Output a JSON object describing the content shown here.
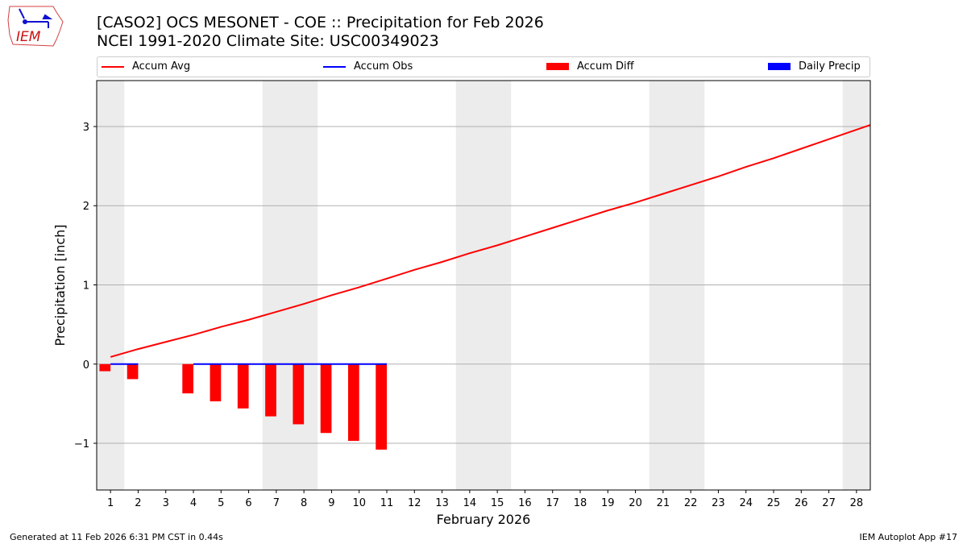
{
  "header": {
    "title": "[CASO2] OCS MESONET - COE :: Precipitation for Feb 2026",
    "subtitle": "NCEI 1991-2020 Climate Site: USC00349023",
    "logo_text": "IEM"
  },
  "footer": {
    "generated": "Generated at 11 Feb 2026 6:31 PM CST in 0.44s",
    "app": "IEM Autoplot App #17"
  },
  "chart_data": {
    "type": "bar+line",
    "xlabel": "February 2026",
    "ylabel": "Precipitation [inch]",
    "xlim": [
      0.5,
      28.5
    ],
    "ylim": [
      -1.59,
      3.58
    ],
    "yticks": [
      -1,
      0,
      1,
      2,
      3
    ],
    "ytick_labels": [
      "−1",
      "0",
      "1",
      "2",
      "3"
    ],
    "xticks": [
      1,
      2,
      3,
      4,
      5,
      6,
      7,
      8,
      9,
      10,
      11,
      12,
      13,
      14,
      15,
      16,
      17,
      18,
      19,
      20,
      21,
      22,
      23,
      24,
      25,
      26,
      27,
      28
    ],
    "grid": "horizontal",
    "legend_position": "top",
    "weekend_shading": [
      [
        0.5,
        1.5
      ],
      [
        6.5,
        8.5
      ],
      [
        13.5,
        15.5
      ],
      [
        20.5,
        22.5
      ],
      [
        27.5,
        28.5
      ]
    ],
    "series": [
      {
        "name": "Accum Avg",
        "type": "line",
        "color": "#ff0000",
        "x": [
          1,
          2,
          3,
          4,
          5,
          6,
          7,
          8,
          9,
          10,
          11,
          12,
          13,
          14,
          15,
          16,
          17,
          18,
          19,
          20,
          21,
          22,
          23,
          24,
          25,
          26,
          27,
          28,
          28.5
        ],
        "values": [
          0.09,
          0.19,
          0.28,
          0.37,
          0.47,
          0.56,
          0.66,
          0.76,
          0.87,
          0.97,
          1.08,
          1.19,
          1.29,
          1.4,
          1.5,
          1.61,
          1.72,
          1.83,
          1.94,
          2.04,
          2.15,
          2.26,
          2.37,
          2.49,
          2.6,
          2.72,
          2.84,
          2.96,
          3.02
        ]
      },
      {
        "name": "Accum Obs",
        "type": "line",
        "color": "#0000ff",
        "segments": [
          {
            "x": [
              1,
              2
            ],
            "values": [
              0,
              0
            ]
          },
          {
            "x": [
              4,
              5,
              6,
              7,
              8,
              9,
              10,
              11
            ],
            "values": [
              0,
              0,
              0,
              0,
              0,
              0,
              0,
              0
            ]
          }
        ]
      },
      {
        "name": "Accum Diff",
        "type": "bar",
        "color": "#ff0000",
        "x": [
          1,
          2,
          4,
          5,
          6,
          7,
          8,
          9,
          10,
          11
        ],
        "values": [
          -0.09,
          -0.19,
          -0.37,
          -0.47,
          -0.56,
          -0.66,
          -0.76,
          -0.87,
          -0.97,
          -1.08
        ]
      },
      {
        "name": "Daily Precip",
        "type": "bar",
        "color": "#0000ff",
        "x": [
          1,
          2,
          4,
          5,
          6,
          7,
          8,
          9,
          10,
          11
        ],
        "values": [
          0,
          0,
          0,
          0,
          0,
          0,
          0,
          0,
          0,
          0
        ]
      }
    ]
  }
}
